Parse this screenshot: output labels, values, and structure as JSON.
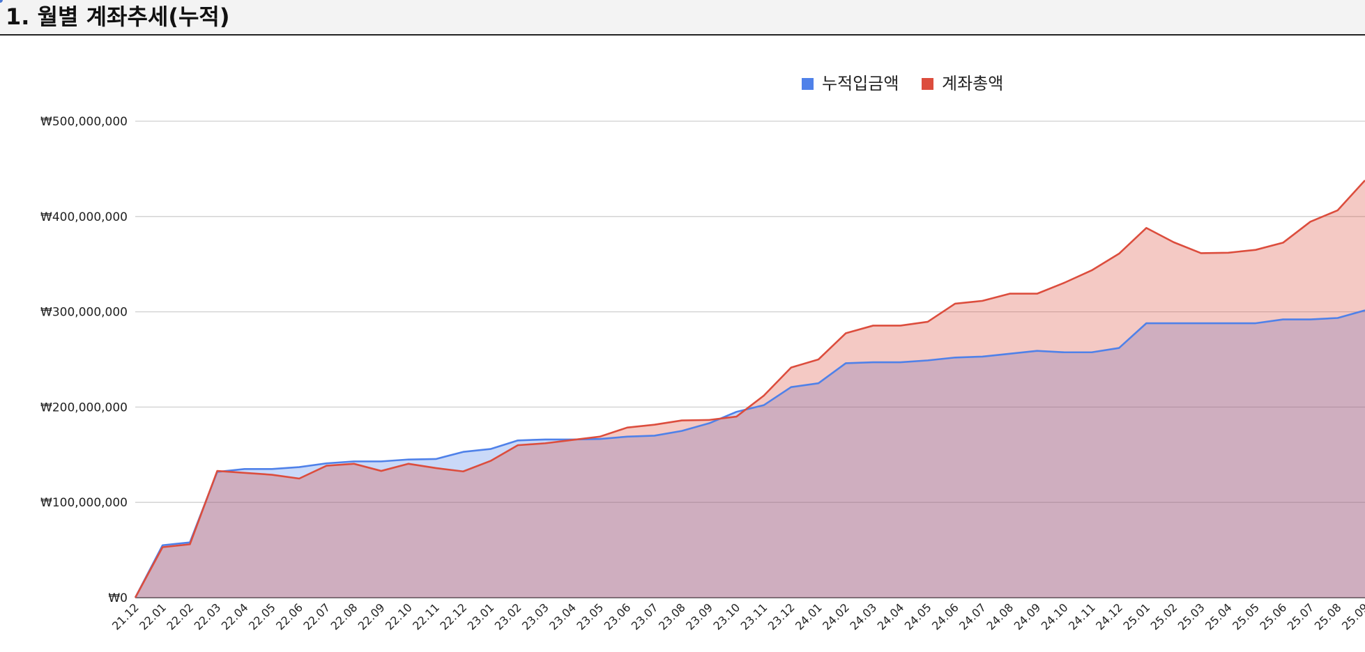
{
  "page": {
    "title": "1. 월별 계좌추세(누적)"
  },
  "chart_data": {
    "type": "area",
    "x": [
      "21.12",
      "22.01",
      "22.02",
      "22.03",
      "22.04",
      "22.05",
      "22.06",
      "22.07",
      "22.08",
      "22.09",
      "22.10",
      "22.11",
      "22.12",
      "23.01",
      "23.02",
      "23.03",
      "23.04",
      "23.05",
      "23.06",
      "23.07",
      "23.08",
      "23.09",
      "23.10",
      "23.11",
      "23.12",
      "24.01",
      "24.02",
      "24.03",
      "24.04",
      "24.05",
      "24.06",
      "24.07",
      "24.08",
      "24.09",
      "24.10",
      "24.11",
      "24.12",
      "25.01",
      "25.02",
      "25.03",
      "25.04",
      "25.05",
      "25.06",
      "25.07",
      "25.08",
      "25.09"
    ],
    "series": [
      {
        "name": "누적입금액",
        "color": "#4f81e9",
        "values": [
          0,
          55000000,
          58000000,
          132000000,
          135000000,
          135000000,
          137000000,
          141000000,
          143000000,
          143000000,
          145000000,
          145500000,
          153000000,
          156000000,
          165000000,
          166000000,
          166000000,
          166500000,
          169000000,
          170000000,
          175000000,
          183000000,
          195000000,
          202000000,
          221000000,
          225000000,
          246000000,
          247000000,
          247000000,
          249000000,
          252000000,
          253000000,
          256000000,
          259000000,
          257500000,
          257500000,
          262000000,
          288000000,
          288000000,
          288000000,
          288000000,
          288000000,
          292000000,
          292000000,
          293500000,
          301500000
        ]
      },
      {
        "name": "계좌총액",
        "color": "#dc4d3d",
        "values": [
          0,
          53000000,
          56000000,
          133000000,
          131000000,
          129000000,
          125000000,
          138500000,
          140500000,
          133000000,
          140500000,
          136000000,
          132500000,
          143500000,
          160000000,
          162000000,
          165500000,
          169000000,
          178500000,
          181500000,
          186000000,
          186500000,
          190000000,
          212000000,
          241500000,
          250000000,
          277500000,
          285500000,
          285500000,
          289500000,
          308500000,
          311500000,
          319000000,
          319000000,
          330500000,
          343500000,
          361000000,
          388000000,
          373000000,
          361500000,
          362000000,
          365000000,
          372500000,
          394500000,
          406500000,
          438000000
        ]
      }
    ],
    "y_ticks": [
      "₩0",
      "₩100,000,000",
      "₩200,000,000",
      "₩300,000,000",
      "₩400,000,000",
      "₩500,000,000"
    ],
    "ylim": [
      0,
      500000000
    ],
    "grid": true,
    "legend_position": "top-center",
    "title": "",
    "xlabel": "",
    "ylabel": ""
  }
}
